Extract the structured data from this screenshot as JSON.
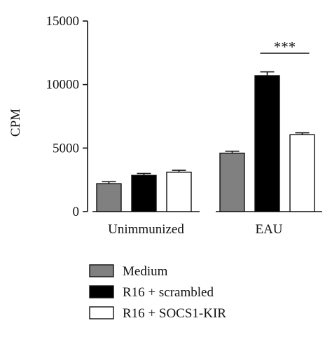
{
  "chart_data": {
    "type": "bar",
    "title": "",
    "xlabel": "",
    "ylabel": "CPM",
    "ylim": [
      0,
      15000
    ],
    "yticks": [
      0,
      5000,
      10000,
      15000
    ],
    "categories": [
      "Unimmunized",
      "EAU"
    ],
    "series": [
      {
        "name": "Medium",
        "color": "#808080",
        "values": [
          2200,
          4600
        ],
        "errors": [
          150,
          150
        ]
      },
      {
        "name": "R16 + scrambled",
        "color": "#000000",
        "values": [
          2850,
          10700
        ],
        "errors": [
          150,
          300
        ]
      },
      {
        "name": "R16 + SOCS1-KIR",
        "color": "#ffffff",
        "values": [
          3100,
          6050
        ],
        "errors": [
          150,
          150
        ]
      }
    ],
    "significance": {
      "label": "***",
      "category": "EAU",
      "between": [
        "R16 + scrambled",
        "R16 + SOCS1-KIR"
      ]
    },
    "legend_position": "bottom",
    "grid": false,
    "error_bars": true
  }
}
